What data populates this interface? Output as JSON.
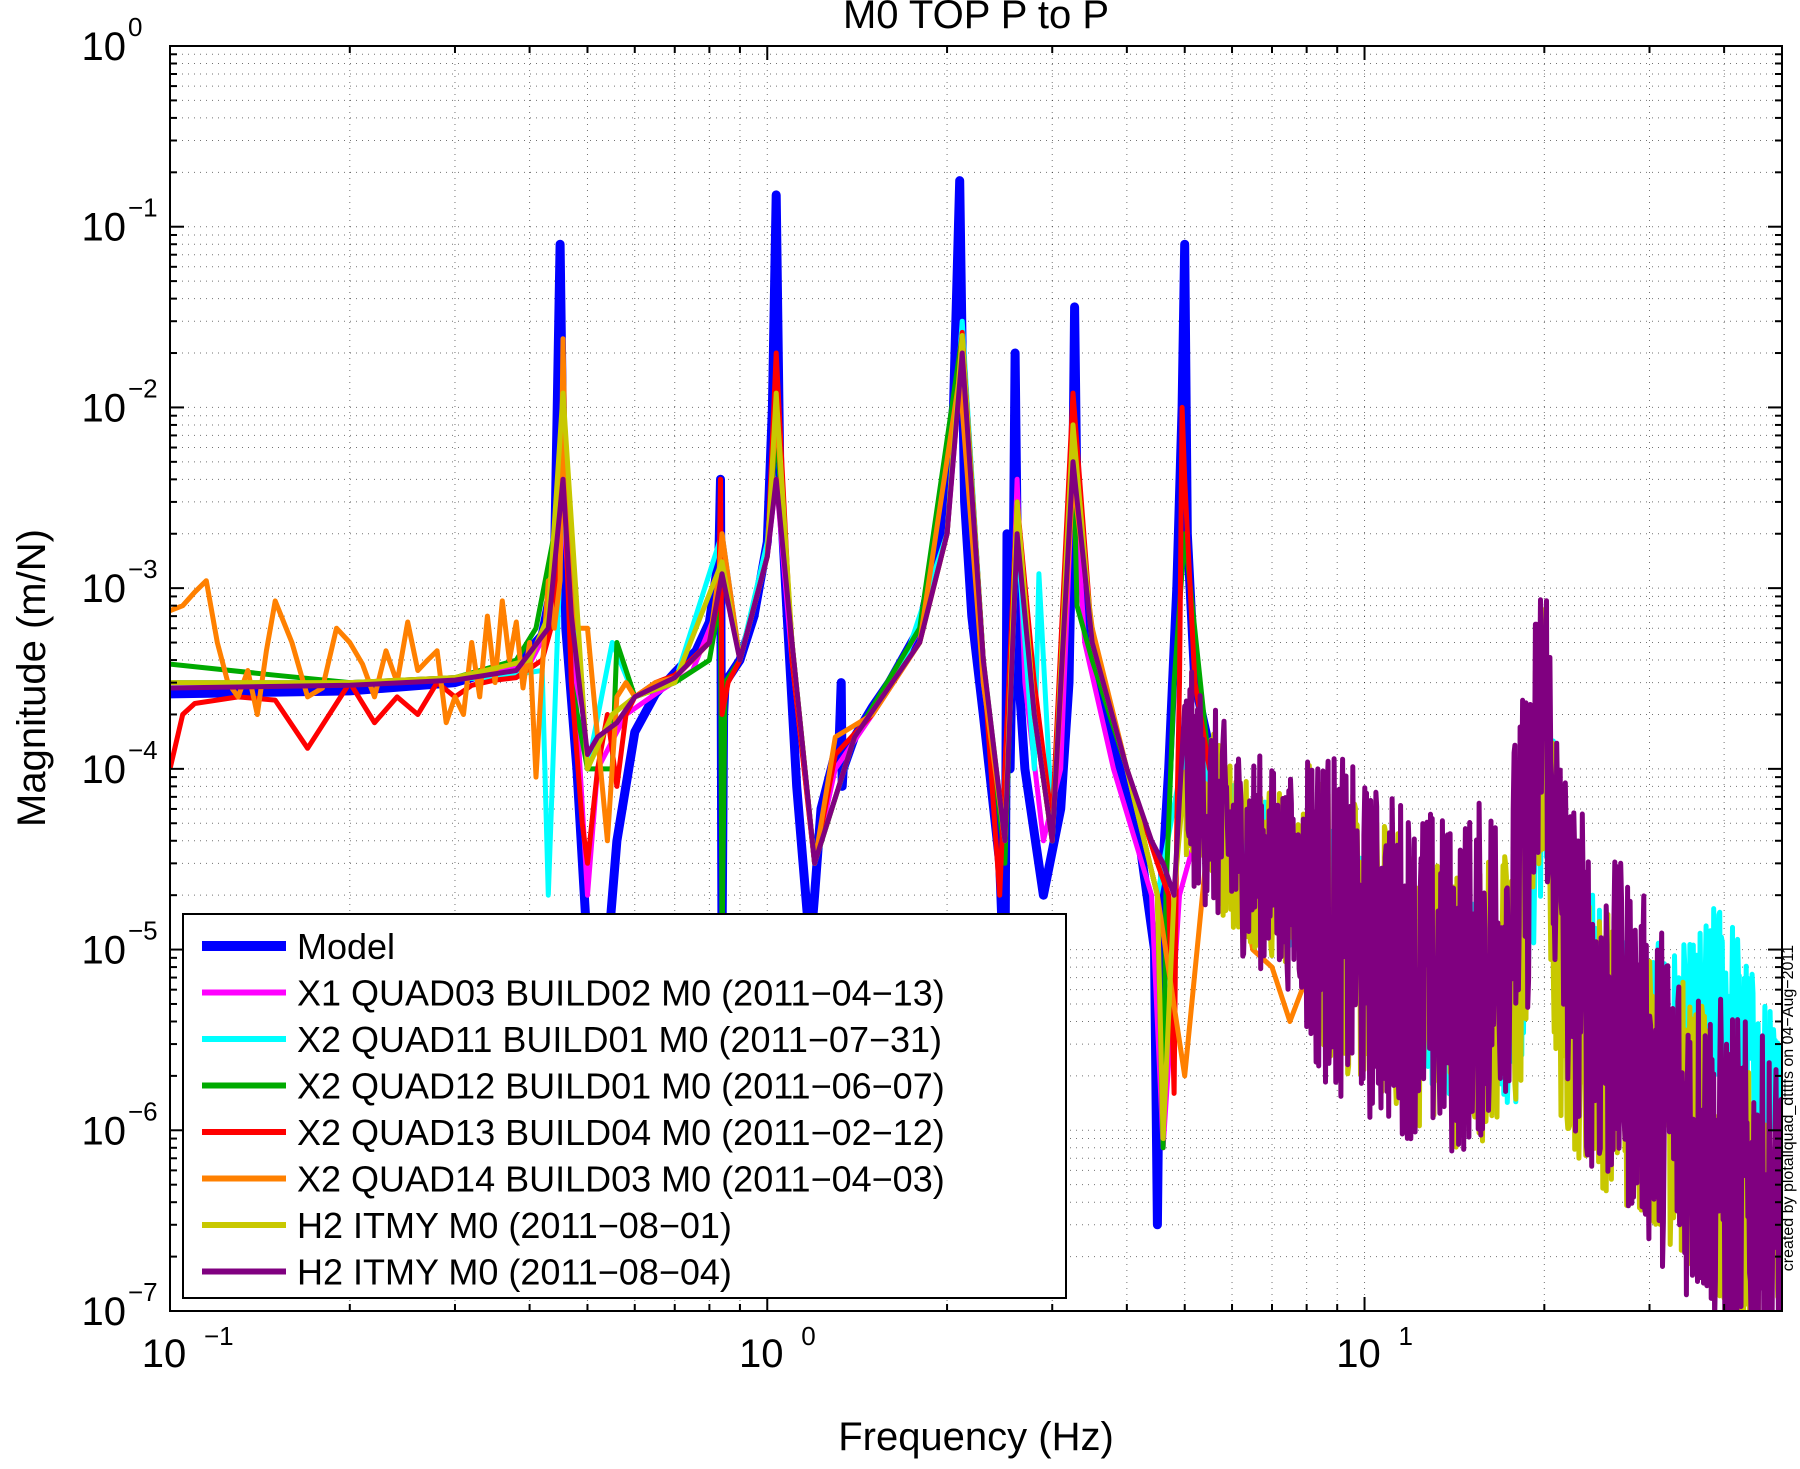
{
  "chart_data": {
    "type": "line",
    "title": "M0 TOP P to P",
    "xlabel": "Frequency (Hz)",
    "ylabel": "Magnitude (m/N)",
    "x_scale": "log",
    "y_scale": "log",
    "xlim": [
      0.1,
      50
    ],
    "ylim": [
      1e-07,
      1
    ],
    "grid": true,
    "legend_position": "bottom-left",
    "x_ticks": [
      {
        "base": "10",
        "exp": "−1",
        "value": 0.1
      },
      {
        "base": "10",
        "exp": "0",
        "value": 1
      },
      {
        "base": "10",
        "exp": "1",
        "value": 10
      }
    ],
    "y_ticks": [
      {
        "base": "10",
        "exp": "0",
        "value": 1
      },
      {
        "base": "10",
        "exp": "−1",
        "value": 0.1
      },
      {
        "base": "10",
        "exp": "−2",
        "value": 0.01
      },
      {
        "base": "10",
        "exp": "−3",
        "value": 0.001
      },
      {
        "base": "10",
        "exp": "−4",
        "value": 0.0001
      },
      {
        "base": "10",
        "exp": "−5",
        "value": 1e-05
      },
      {
        "base": "10",
        "exp": "−6",
        "value": 1e-06
      },
      {
        "base": "10",
        "exp": "−7",
        "value": 1e-07
      }
    ],
    "annotation": "created by plotallquad_dtttfs on 04−Aug−2011",
    "series": [
      {
        "name": "Model",
        "color": "#0000ff",
        "width": 9,
        "x": [
          0.1,
          0.2,
          0.3,
          0.38,
          0.42,
          0.44,
          0.45,
          0.455,
          0.46,
          0.48,
          0.5,
          0.52,
          0.56,
          0.6,
          0.65,
          0.7,
          0.76,
          0.8,
          0.83,
          0.835,
          0.84,
          0.845,
          0.85,
          0.9,
          0.95,
          1.0,
          1.02,
          1.035,
          1.05,
          1.08,
          1.12,
          1.18,
          1.2,
          1.23,
          1.28,
          1.32,
          1.33,
          1.335,
          1.34,
          1.4,
          1.5,
          1.6,
          1.8,
          1.95,
          2.05,
          2.1,
          2.12,
          2.14,
          2.2,
          2.3,
          2.45,
          2.5,
          2.52,
          2.55,
          2.58,
          2.6,
          2.62,
          2.64,
          2.7,
          2.9,
          3.1,
          3.2,
          3.25,
          3.27,
          3.3,
          3.4,
          3.6,
          3.9,
          4.2,
          4.45,
          4.5,
          4.55,
          4.6,
          4.7,
          4.85,
          4.95,
          5.0,
          5.05,
          5.2,
          5.6,
          6,
          7,
          8,
          9,
          10
        ],
        "y": [
          0.00026,
          0.00027,
          0.0003,
          0.00038,
          0.00055,
          0.0012,
          0.08,
          0.005,
          0.0006,
          0.0001,
          1e-05,
          2e-06,
          4e-05,
          0.00016,
          0.00026,
          0.00034,
          0.00045,
          0.00065,
          0.0015,
          0.004,
          1e-05,
          0.0002,
          0.0003,
          0.0004,
          0.0007,
          0.0018,
          0.01,
          0.15,
          0.004,
          0.0007,
          8e-05,
          1e-05,
          2e-05,
          6e-05,
          0.0001,
          0.00015,
          0.0003,
          8e-05,
          0.0001,
          0.00015,
          0.00022,
          0.0003,
          0.0006,
          0.002,
          0.01,
          0.18,
          0.02,
          0.003,
          0.0007,
          0.0002,
          3e-05,
          5e-06,
          0.002,
          0.0001,
          0.001,
          0.02,
          0.002,
          0.0003,
          0.0001,
          2e-05,
          6e-05,
          0.0003,
          0.005,
          0.036,
          0.003,
          0.0008,
          0.0003,
          0.0001,
          4e-05,
          1e-05,
          3e-07,
          1e-05,
          3e-05,
          0.0001,
          0.001,
          0.01,
          0.08,
          0.002,
          0.0003,
          0.0001,
          5e-05,
          2e-05,
          1e-05,
          7e-06,
          5e-06
        ]
      },
      {
        "name": "X1 QUAD03 BUILD02 M0 (2011−04−13)",
        "color": "#ff00ff",
        "width": 5,
        "x": [
          0.1,
          0.2,
          0.3,
          0.4,
          0.43,
          0.455,
          0.48,
          0.5,
          0.52,
          0.58,
          0.65,
          0.75,
          0.83,
          0.84,
          0.9,
          1.0,
          1.035,
          1.1,
          1.2,
          1.3,
          1.5,
          1.8,
          2.0,
          2.12,
          2.3,
          2.5,
          2.62,
          2.7,
          2.9,
          3.1,
          3.25,
          3.4,
          3.8,
          4.4,
          4.6,
          4.9,
          5.5
        ],
        "y": [
          0.0003,
          0.0003,
          0.00032,
          0.00038,
          0.0006,
          0.003,
          0.0002,
          2e-05,
          0.0001,
          0.0002,
          0.00026,
          0.00035,
          0.0008,
          0.002,
          0.0004,
          0.0015,
          0.004,
          0.0004,
          3e-05,
          0.0001,
          0.0002,
          0.0006,
          0.002,
          0.02,
          0.0003,
          4e-05,
          0.004,
          0.0003,
          4e-05,
          0.0001,
          0.005,
          0.0005,
          0.0001,
          2e-05,
          8e-07,
          2e-05,
          8e-05
        ]
      },
      {
        "name": "X2 QUAD11 BUILD01 M0 (2011−07−31)",
        "color": "#00ffff",
        "width": 5,
        "noise": 0.35,
        "x": [
          0.1,
          0.2,
          0.35,
          0.42,
          0.43,
          0.455,
          0.5,
          0.55,
          0.6,
          0.7,
          0.84,
          0.9,
          1.0,
          1.035,
          1.1,
          1.2,
          1.4,
          1.7,
          2.0,
          2.12,
          2.3,
          2.5,
          2.62,
          2.8,
          2.85,
          3.0,
          3.25,
          3.5,
          4.0,
          4.5,
          5.0,
          6,
          8,
          10,
          14,
          18,
          20,
          22,
          25,
          30,
          35,
          40,
          45,
          50
        ],
        "y": [
          0.0003,
          0.0003,
          0.00032,
          0.00035,
          2e-05,
          0.004,
          0.0001,
          0.0005,
          0.00025,
          0.0003,
          0.002,
          0.0004,
          0.0018,
          0.008,
          0.0005,
          3e-05,
          0.00015,
          0.0004,
          0.002,
          0.03,
          0.0004,
          4e-05,
          0.002,
          0.0001,
          0.0012,
          5e-05,
          0.006,
          0.0005,
          0.0001,
          2e-05,
          0.0001,
          4e-05,
          2e-05,
          1e-05,
          5e-06,
          5e-06,
          0.0001,
          1e-05,
          5e-06,
          3e-06,
          3e-06,
          6e-06,
          2e-06,
          1e-06
        ]
      },
      {
        "name": "X2 QUAD12 BUILD01 M0 (2011−06−07)",
        "color": "#00aa00",
        "width": 5,
        "x": [
          0.1,
          0.15,
          0.2,
          0.3,
          0.38,
          0.41,
          0.44,
          0.455,
          0.47,
          0.5,
          0.55,
          0.56,
          0.6,
          0.7,
          0.8,
          0.83,
          0.835,
          0.84,
          0.85,
          0.9,
          1.0,
          1.035,
          1.1,
          1.2,
          1.4,
          1.8,
          2.12,
          2.3,
          2.5,
          2.62,
          2.8,
          3.0,
          3.25,
          3.3,
          3.5,
          4.0,
          4.5,
          4.6,
          4.65,
          4.8,
          5.0,
          5.5
        ],
        "y": [
          0.00038,
          0.00033,
          0.0003,
          0.00032,
          0.0004,
          0.0006,
          0.002,
          0.01,
          0.0003,
          0.0001,
          0.0001,
          0.0005,
          0.00025,
          0.0003,
          0.0004,
          0.0008,
          0.0008,
          1e-05,
          0.0003,
          0.0004,
          0.0015,
          0.008,
          0.0005,
          3e-05,
          0.00015,
          0.0006,
          0.025,
          0.0004,
          3e-05,
          0.003,
          0.0002,
          4e-05,
          0.007,
          0.0008,
          0.0004,
          0.0001,
          2e-05,
          8e-07,
          2e-05,
          0.0003,
          0.002,
          0.0001
        ]
      },
      {
        "name": "X2 QUAD13 BUILD04 M0 (2011−02−12)",
        "color": "#ff0000",
        "width": 5,
        "x": [
          0.1,
          0.105,
          0.11,
          0.13,
          0.15,
          0.17,
          0.2,
          0.22,
          0.24,
          0.26,
          0.28,
          0.3,
          0.32,
          0.35,
          0.38,
          0.42,
          0.44,
          0.455,
          0.47,
          0.49,
          0.5,
          0.52,
          0.54,
          0.56,
          0.58,
          0.6,
          0.65,
          0.7,
          0.8,
          0.83,
          0.835,
          0.84,
          0.86,
          0.9,
          1.0,
          1.035,
          1.1,
          1.2,
          1.3,
          1.5,
          1.8,
          2.0,
          2.12,
          2.3,
          2.45,
          2.5,
          2.62,
          2.8,
          3.0,
          3.25,
          3.5,
          4.0,
          4.5,
          4.7,
          4.8,
          4.85,
          4.9,
          4.95,
          5.0,
          5.2,
          5.5,
          6,
          7,
          8
        ],
        "y": [
          0.0001,
          0.0002,
          0.00023,
          0.00025,
          0.00024,
          0.00013,
          0.0003,
          0.00018,
          0.00025,
          0.0002,
          0.0003,
          0.00025,
          0.00029,
          0.00031,
          0.00032,
          0.0004,
          0.0007,
          0.006,
          0.0003,
          5e-05,
          3e-05,
          0.0001,
          0.0002,
          8e-05,
          0.0002,
          0.00025,
          0.0003,
          0.00033,
          0.0005,
          0.0009,
          0.004,
          0.0002,
          0.0003,
          0.0004,
          0.0015,
          0.02,
          0.0004,
          3e-05,
          0.00012,
          0.0002,
          0.0005,
          0.002,
          0.026,
          0.0004,
          2e-05,
          0.0001,
          0.003,
          0.0003,
          5e-05,
          0.012,
          0.0005,
          0.0001,
          3e-05,
          2e-05,
          1.6e-06,
          5e-05,
          0.0003,
          0.01,
          0.004,
          0.0003,
          0.0001,
          5e-05,
          3e-05,
          2e-05
        ]
      },
      {
        "name": "X2 QUAD14 BUILD03 M0 (2011−04−03)",
        "color": "#ff8000",
        "width": 5,
        "x": [
          0.1,
          0.105,
          0.11,
          0.115,
          0.12,
          0.125,
          0.13,
          0.135,
          0.14,
          0.145,
          0.15,
          0.16,
          0.17,
          0.18,
          0.19,
          0.2,
          0.21,
          0.22,
          0.23,
          0.24,
          0.25,
          0.26,
          0.27,
          0.28,
          0.29,
          0.3,
          0.31,
          0.32,
          0.33,
          0.34,
          0.35,
          0.36,
          0.37,
          0.38,
          0.39,
          0.4,
          0.41,
          0.42,
          0.43,
          0.44,
          0.45,
          0.455,
          0.46,
          0.48,
          0.5,
          0.52,
          0.54,
          0.56,
          0.58,
          0.6,
          0.65,
          0.7,
          0.75,
          0.8,
          0.83,
          0.84,
          0.9,
          1.0,
          1.035,
          1.1,
          1.2,
          1.3,
          1.5,
          1.8,
          2.1,
          2.3,
          2.5,
          2.62,
          2.8,
          3.0,
          3.25,
          3.5,
          4.0,
          4.5,
          5.0,
          5.5,
          6,
          6.5,
          7,
          7.5,
          8,
          8.5,
          9
        ],
        "y": [
          0.00075,
          0.0008,
          0.00095,
          0.0011,
          0.0005,
          0.0003,
          0.00025,
          0.00035,
          0.0002,
          0.00045,
          0.00085,
          0.0005,
          0.00025,
          0.00028,
          0.0006,
          0.0005,
          0.00038,
          0.00025,
          0.00045,
          0.0003,
          0.00065,
          0.00035,
          0.0004,
          0.00045,
          0.00018,
          0.00025,
          0.0002,
          0.0005,
          0.00025,
          0.0007,
          0.0003,
          0.00085,
          0.0004,
          0.00065,
          0.00028,
          0.0005,
          9e-05,
          0.00035,
          0.0011,
          0.0006,
          0.0011,
          0.024,
          0.0035,
          0.0006,
          0.0006,
          0.00015,
          4e-05,
          0.00025,
          0.0003,
          0.00025,
          0.0003,
          0.00032,
          0.0004,
          0.0005,
          0.0012,
          0.002,
          0.0004,
          0.0015,
          0.01,
          0.0005,
          3e-05,
          0.00015,
          0.0002,
          0.0005,
          0.015,
          0.0003,
          4e-05,
          0.003,
          0.0002,
          4e-05,
          0.004,
          0.0006,
          0.0001,
          2e-05,
          2e-06,
          5e-05,
          4e-05,
          1e-05,
          8e-06,
          4e-06,
          7e-06,
          4e-06,
          3e-06
        ]
      },
      {
        "name": "H2 ITMY  M0 (2011−08−01)",
        "color": "#c8c800",
        "width": 5,
        "noise": 0.5,
        "x": [
          0.1,
          0.2,
          0.3,
          0.4,
          0.43,
          0.455,
          0.5,
          0.55,
          0.6,
          0.7,
          0.84,
          0.9,
          1.0,
          1.035,
          1.1,
          1.2,
          1.4,
          1.8,
          2.0,
          2.12,
          2.3,
          2.5,
          2.62,
          2.8,
          3.0,
          3.25,
          3.5,
          4.0,
          4.5,
          4.6,
          4.8,
          5.0,
          6,
          8,
          10,
          14,
          18,
          20,
          21,
          22,
          25,
          28,
          30,
          35,
          40,
          45,
          50
        ],
        "y": [
          0.0003,
          0.0003,
          0.00032,
          0.0004,
          0.0007,
          0.012,
          0.0001,
          0.0002,
          0.00025,
          0.0003,
          0.0014,
          0.0004,
          0.0015,
          0.012,
          0.0005,
          3e-05,
          0.00015,
          0.0005,
          0.002,
          0.025,
          0.0004,
          4e-05,
          0.003,
          0.0002,
          4e-05,
          0.008,
          0.0005,
          0.0001,
          2e-05,
          9e-07,
          2e-05,
          0.0001,
          4e-05,
          2e-05,
          1e-05,
          5e-06,
          6e-06,
          0.0002,
          8e-06,
          5e-06,
          3e-06,
          2e-06,
          2e-06,
          1e-06,
          5e-07,
          3e-07,
          2e-07
        ]
      },
      {
        "name": "H2 ITMY  M0 (2011−08−04)",
        "color": "#800080",
        "width": 5,
        "noise": 0.6,
        "x": [
          0.1,
          0.2,
          0.3,
          0.38,
          0.43,
          0.455,
          0.47,
          0.5,
          0.52,
          0.56,
          0.6,
          0.7,
          0.8,
          0.84,
          0.9,
          1.0,
          1.035,
          1.1,
          1.2,
          1.4,
          1.8,
          2.0,
          2.12,
          2.3,
          2.5,
          2.62,
          2.8,
          3.0,
          3.25,
          3.5,
          4.0,
          4.4,
          4.6,
          4.8,
          5.0,
          6,
          8,
          10,
          12,
          14,
          16,
          18,
          19,
          20,
          21,
          22,
          25,
          28,
          30,
          35,
          40,
          45,
          50
        ],
        "y": [
          0.00028,
          0.00029,
          0.00031,
          0.00035,
          0.0006,
          0.004,
          0.0007,
          0.00012,
          0.00015,
          0.00018,
          0.00025,
          0.00032,
          0.0005,
          0.0012,
          0.0004,
          0.0015,
          0.004,
          0.0005,
          3e-05,
          0.00015,
          0.0005,
          0.002,
          0.02,
          0.0004,
          4e-05,
          0.002,
          0.0002,
          4e-05,
          0.005,
          0.0005,
          0.0001,
          4e-05,
          3e-05,
          2e-05,
          0.0001,
          4e-05,
          2e-05,
          1e-05,
          8e-06,
          6e-06,
          8e-06,
          2e-05,
          5e-05,
          0.0003,
          3e-05,
          1e-05,
          4e-06,
          3e-06,
          2e-06,
          1e-06,
          6e-07,
          4e-07,
          3e-07
        ]
      }
    ]
  }
}
